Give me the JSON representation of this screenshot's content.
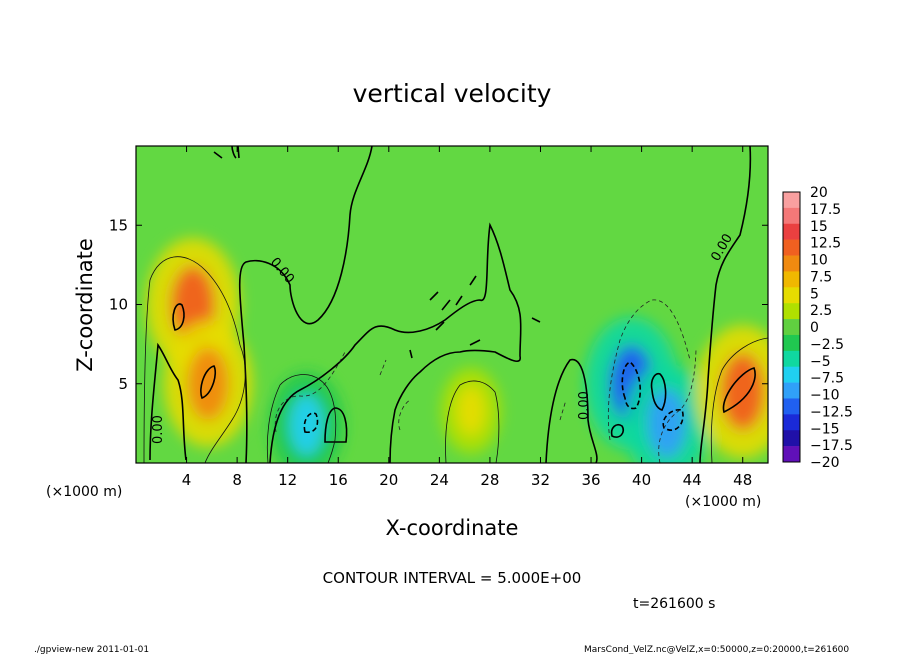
{
  "chart_data": {
    "type": "heatmap",
    "title": "vertical velocity",
    "xlabel": "X-coordinate",
    "ylabel": "Z-coordinate",
    "x_unit": "(×1000 m)",
    "y_unit": "(×1000 m)",
    "xlim": [
      0,
      50
    ],
    "ylim": [
      0,
      20
    ],
    "x_ticks": [
      "4",
      "8",
      "12",
      "16",
      "20",
      "24",
      "28",
      "32",
      "36",
      "40",
      "44",
      "48"
    ],
    "y_ticks": [
      "5",
      "10",
      "15"
    ],
    "colorbar": {
      "labels": [
        "20",
        "17.5",
        "15",
        "12.5",
        "10",
        "7.5",
        "5",
        "2.5",
        "0",
        "−2.5",
        "−5",
        "−7.5",
        "−10",
        "−12.5",
        "−15",
        "−17.5",
        "−20"
      ],
      "colors": [
        "#f9a0a0",
        "#f47878",
        "#ea4040",
        "#f06020",
        "#f08a10",
        "#f0b800",
        "#e6dc00",
        "#b0e000",
        "#60d040",
        "#20c850",
        "#10d8a0",
        "#20d0f0",
        "#30a0f8",
        "#2060f0",
        "#1a2ad8",
        "#2010a8",
        "#6010b8"
      ]
    },
    "background_color": "#62d842",
    "features": [
      {
        "x": 4.5,
        "z": 10,
        "value": 12.0,
        "label": "updraft"
      },
      {
        "x": 5.7,
        "z": 5,
        "value": 11.0,
        "label": "updraft"
      },
      {
        "x": 13.5,
        "z": 2.4,
        "value": -8.0,
        "label": "downdraft"
      },
      {
        "x": 26.5,
        "z": 3.3,
        "value": 5.0,
        "label": "updraft"
      },
      {
        "x": 39.2,
        "z": 5.0,
        "value": -12.0,
        "label": "downdraft"
      },
      {
        "x": 42.0,
        "z": 2.5,
        "value": -10.0,
        "label": "downdraft"
      },
      {
        "x": 48.0,
        "z": 4.5,
        "value": 12.0,
        "label": "updraft"
      }
    ],
    "contour_labels": [
      "0.00",
      "0.00",
      "0.00",
      "0.00"
    ],
    "contour_interval": "CONTOUR INTERVAL = 5.000E+00"
  },
  "time_label": "t=261600 s",
  "footer": {
    "left": "./gpview-new  2011-01-01",
    "right": "MarsCond_VelZ.nc@VelZ,x=0:50000,z=0:20000,t=261600"
  }
}
